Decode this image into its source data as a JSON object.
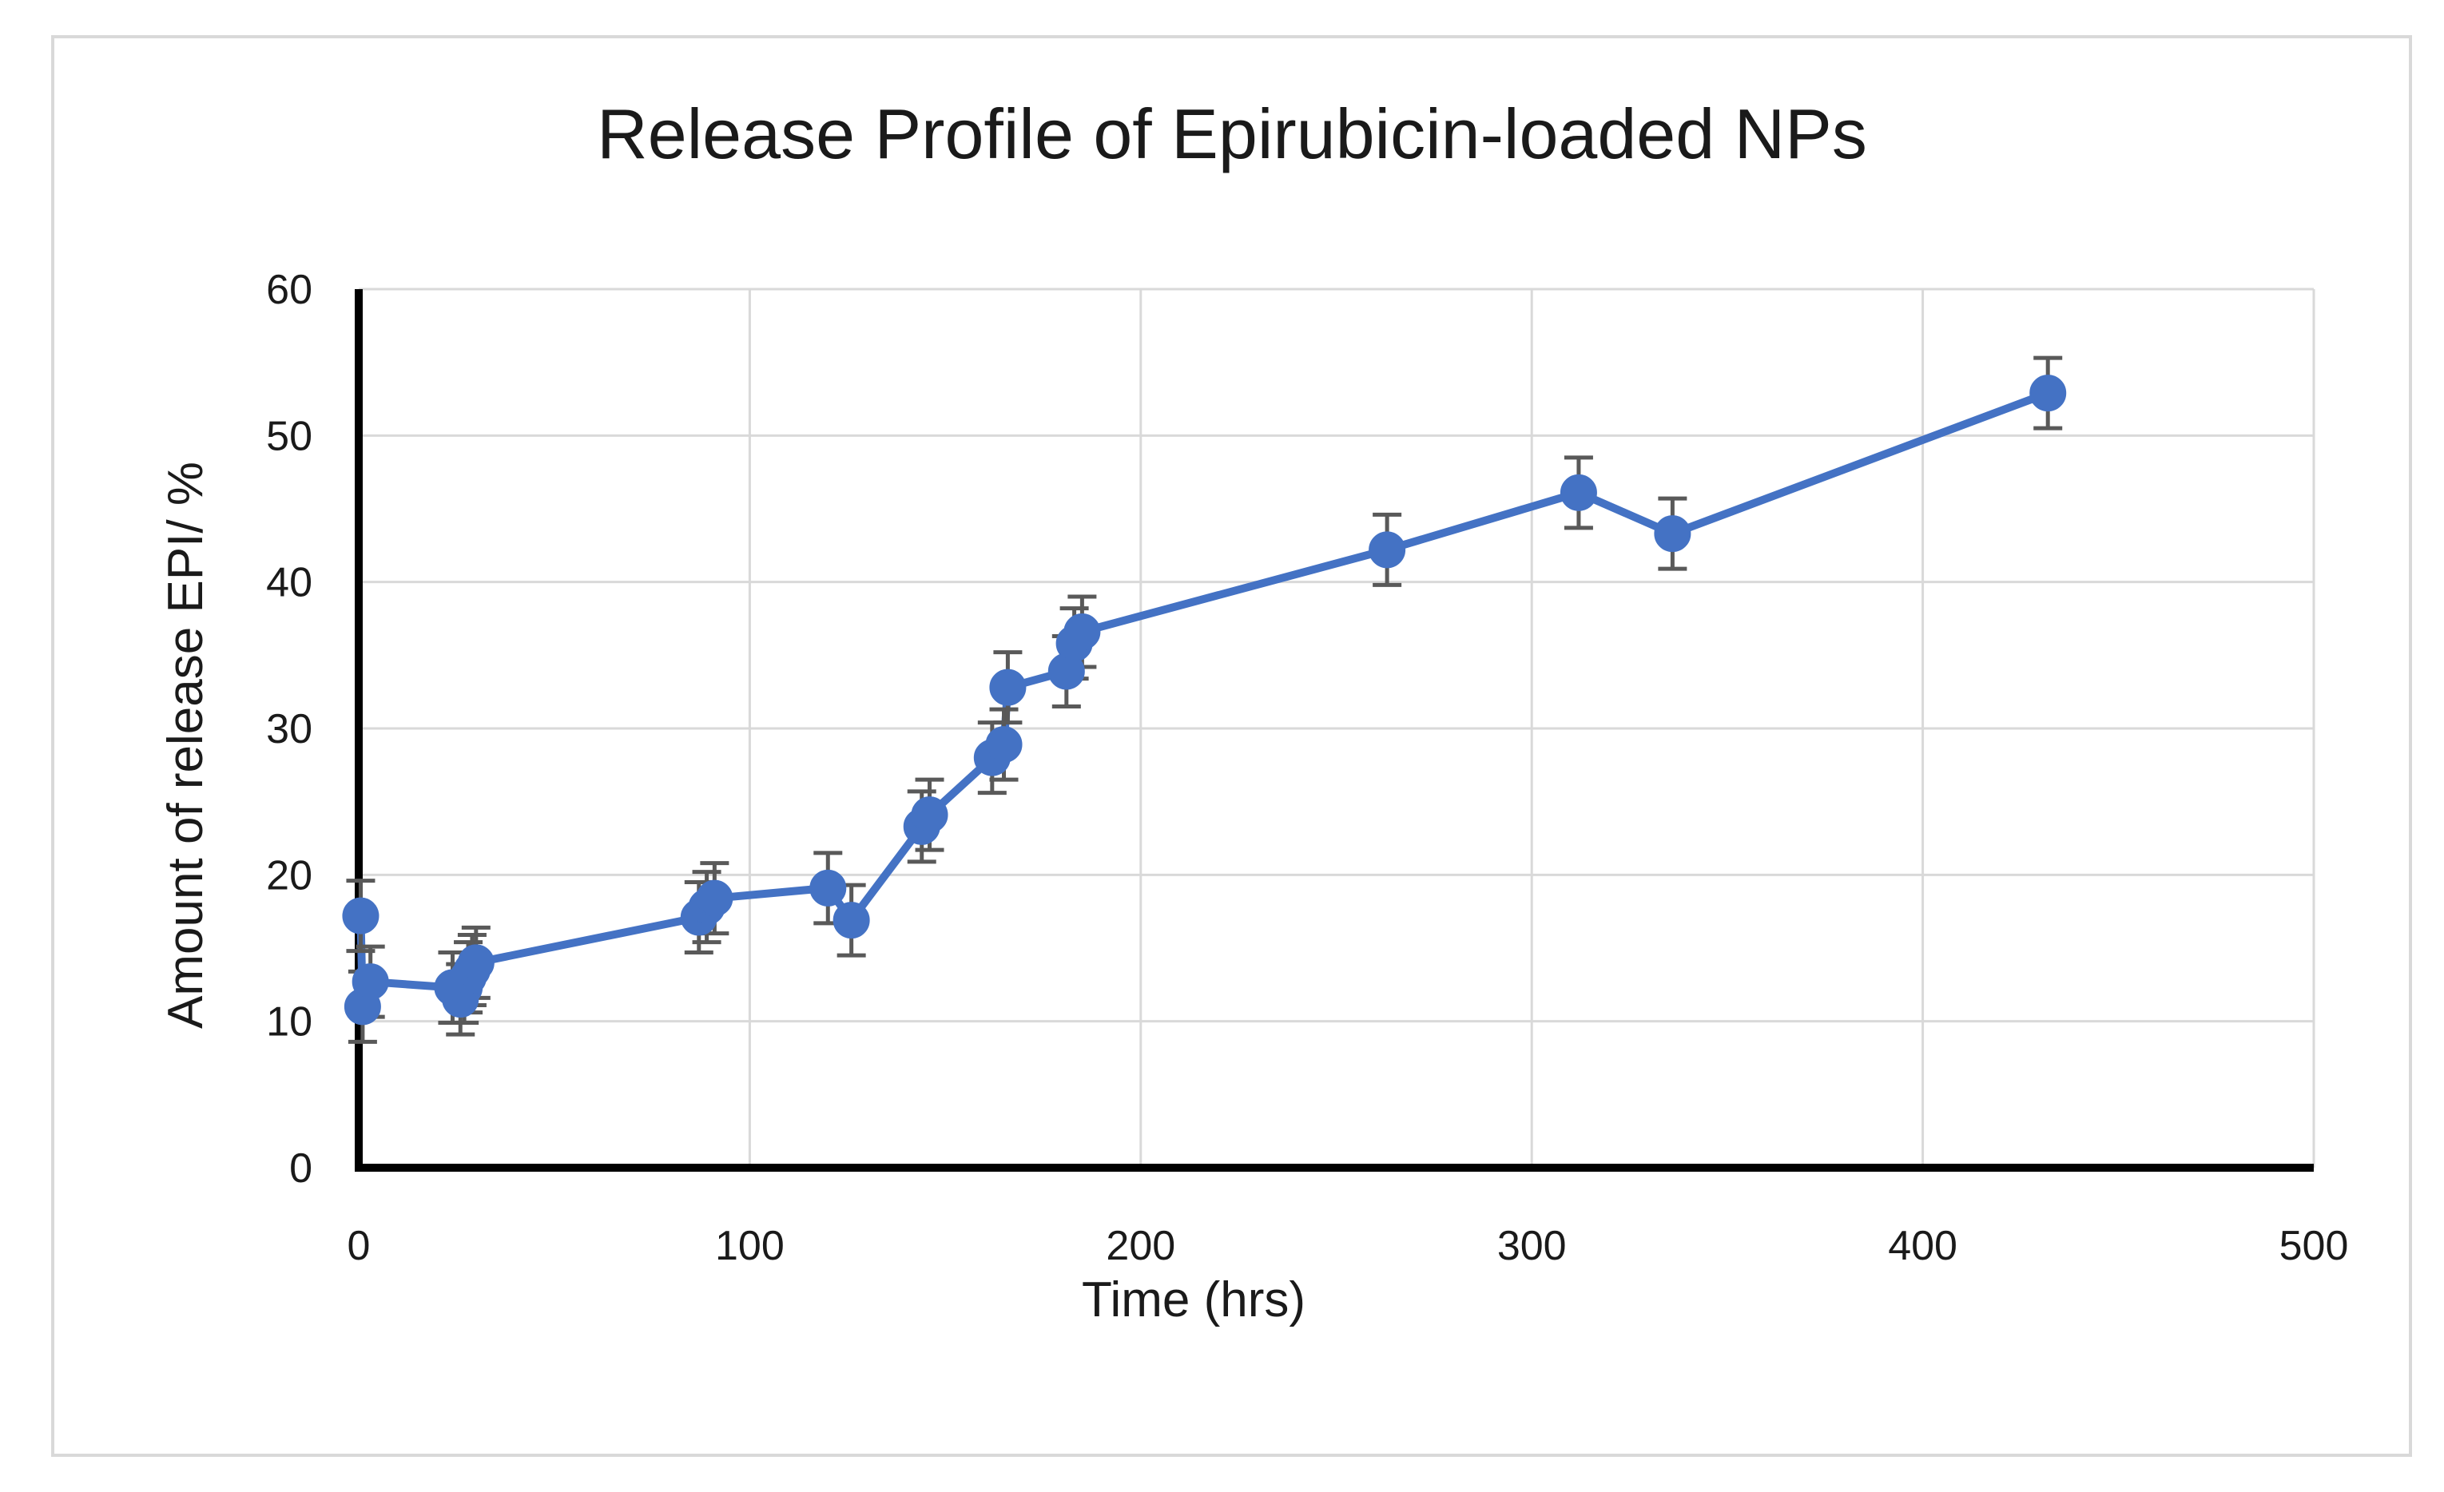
{
  "chart_data": {
    "type": "scatter",
    "title": "Release Profile of Epirubicin-loaded NPs",
    "xlabel": "Time (hrs)",
    "ylabel": "Amount of release EPI/ %",
    "xlim": [
      0,
      500
    ],
    "ylim": [
      0,
      60
    ],
    "xticks": [
      0,
      100,
      200,
      300,
      400,
      500
    ],
    "yticks": [
      0,
      10,
      20,
      30,
      40,
      50,
      60
    ],
    "grid": true,
    "legend": "none",
    "connected": true,
    "series": [
      {
        "color": "#4472c4",
        "points": [
          {
            "x": 0.5,
            "y": 17.2,
            "err": 2.4
          },
          {
            "x": 1,
            "y": 11.0,
            "err": 2.4
          },
          {
            "x": 3,
            "y": 12.7,
            "err": 2.4
          },
          {
            "x": 24,
            "y": 12.3,
            "err": 2.4
          },
          {
            "x": 26,
            "y": 11.5,
            "err": 2.4
          },
          {
            "x": 27,
            "y": 12.3,
            "err": 2.4
          },
          {
            "x": 28,
            "y": 13.0,
            "err": 2.4
          },
          {
            "x": 29,
            "y": 13.5,
            "err": 2.4
          },
          {
            "x": 30,
            "y": 14.0,
            "err": 2.4
          },
          {
            "x": 87,
            "y": 17.1,
            "err": 2.4
          },
          {
            "x": 89,
            "y": 17.8,
            "err": 2.4
          },
          {
            "x": 91,
            "y": 18.4,
            "err": 2.4
          },
          {
            "x": 120,
            "y": 19.1,
            "err": 2.4
          },
          {
            "x": 126,
            "y": 16.9,
            "err": 2.4
          },
          {
            "x": 144,
            "y": 23.3,
            "err": 2.4
          },
          {
            "x": 146,
            "y": 24.1,
            "err": 2.4
          },
          {
            "x": 162,
            "y": 28.0,
            "err": 2.4
          },
          {
            "x": 165,
            "y": 28.9,
            "err": 2.4
          },
          {
            "x": 166,
            "y": 32.8,
            "err": 2.4
          },
          {
            "x": 181,
            "y": 33.9,
            "err": 2.4
          },
          {
            "x": 183,
            "y": 35.8,
            "err": 2.4
          },
          {
            "x": 185,
            "y": 36.6,
            "err": 2.4
          },
          {
            "x": 263,
            "y": 42.2,
            "err": 2.4
          },
          {
            "x": 312,
            "y": 46.1,
            "err": 2.4
          },
          {
            "x": 336,
            "y": 43.3,
            "err": 2.4
          },
          {
            "x": 432,
            "y": 52.9,
            "err": 2.4
          }
        ]
      }
    ]
  }
}
